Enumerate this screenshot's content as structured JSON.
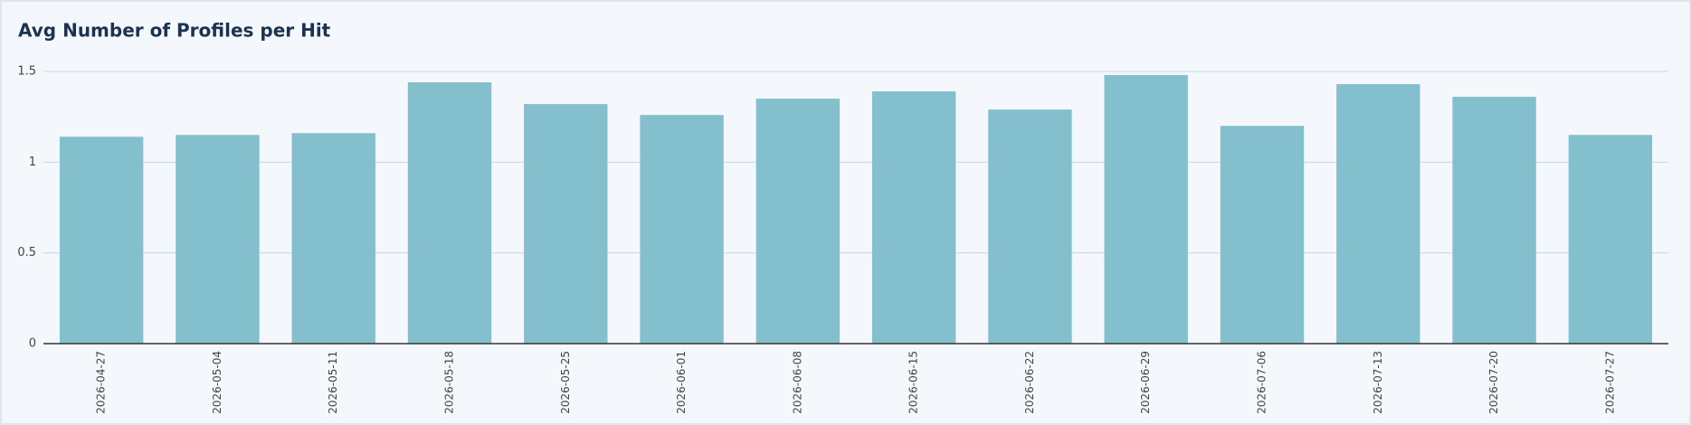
{
  "chart_data": {
    "type": "bar",
    "title": "Avg Number of Profiles per Hit",
    "categories": [
      "2026-04-27",
      "2026-05-04",
      "2026-05-11",
      "2026-05-18",
      "2026-05-25",
      "2026-06-01",
      "2026-06-08",
      "2026-06-15",
      "2026-06-22",
      "2026-06-29",
      "2026-07-06",
      "2026-07-13",
      "2026-07-20",
      "2026-07-27"
    ],
    "values": [
      1.14,
      1.15,
      1.16,
      1.44,
      1.32,
      1.26,
      1.35,
      1.39,
      1.29,
      1.48,
      1.2,
      1.43,
      1.36,
      1.15
    ],
    "color": "#83bfcd",
    "ylim": [
      0,
      1.5
    ],
    "yticks": [
      0,
      0.5,
      1,
      1.5
    ],
    "grid": true
  }
}
